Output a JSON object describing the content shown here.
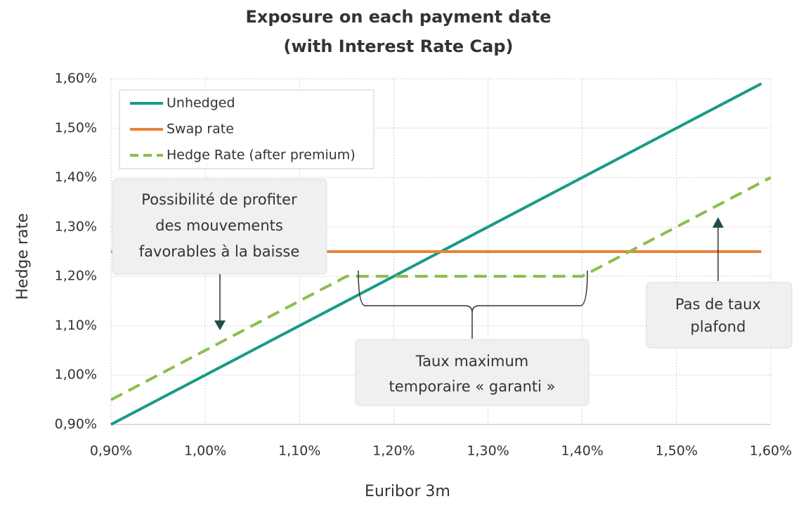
{
  "chart_data": {
    "type": "line",
    "title": [
      "Exposure on each payment date",
      "(with Interest Rate Cap)"
    ],
    "xlabel": "Euribor 3m",
    "ylabel": "Hedge rate",
    "xlim": [
      0.9,
      1.6
    ],
    "ylim": [
      0.9,
      1.6
    ],
    "xticks": [
      {
        "value": 0.9,
        "label": "0,90%"
      },
      {
        "value": 1.0,
        "label": "1,00%"
      },
      {
        "value": 1.1,
        "label": "1,10%"
      },
      {
        "value": 1.2,
        "label": "1,20%"
      },
      {
        "value": 1.3,
        "label": "1,30%"
      },
      {
        "value": 1.4,
        "label": "1,40%"
      },
      {
        "value": 1.5,
        "label": "1,50%"
      },
      {
        "value": 1.6,
        "label": "1,60%"
      }
    ],
    "yticks": [
      {
        "value": 0.9,
        "label": "0,90%"
      },
      {
        "value": 1.0,
        "label": "1,00%"
      },
      {
        "value": 1.1,
        "label": "1,10%"
      },
      {
        "value": 1.2,
        "label": "1,20%"
      },
      {
        "value": 1.3,
        "label": "1,30%"
      },
      {
        "value": 1.4,
        "label": "1,40%"
      },
      {
        "value": 1.5,
        "label": "1,50%"
      },
      {
        "value": 1.6,
        "label": "1,60%"
      }
    ],
    "grid": true,
    "legend": "upper left",
    "series": [
      {
        "name": "Unhedged",
        "color": "#1a9a86",
        "x": [
          0.9,
          1.59
        ],
        "values": [
          0.9,
          1.59
        ]
      },
      {
        "name": "Swap rate",
        "color": "#e8833a",
        "x": [
          0.9,
          1.59
        ],
        "values": [
          1.25,
          1.25
        ]
      },
      {
        "name": "Hedge Rate (after premium)",
        "color": "#8bbd4f",
        "dashed": true,
        "x": [
          0.9,
          1.15,
          1.4,
          1.6
        ],
        "values": [
          0.95,
          1.2,
          1.2,
          1.4
        ]
      }
    ],
    "annotations": [
      {
        "lines": [
          "Possibilité de profiter",
          "des mouvements",
          "favorables à la baisse"
        ]
      },
      {
        "lines": [
          "Taux maximum",
          "temporaire « garanti »"
        ]
      },
      {
        "lines": [
          "Pas de taux",
          "plafond"
        ]
      }
    ]
  }
}
